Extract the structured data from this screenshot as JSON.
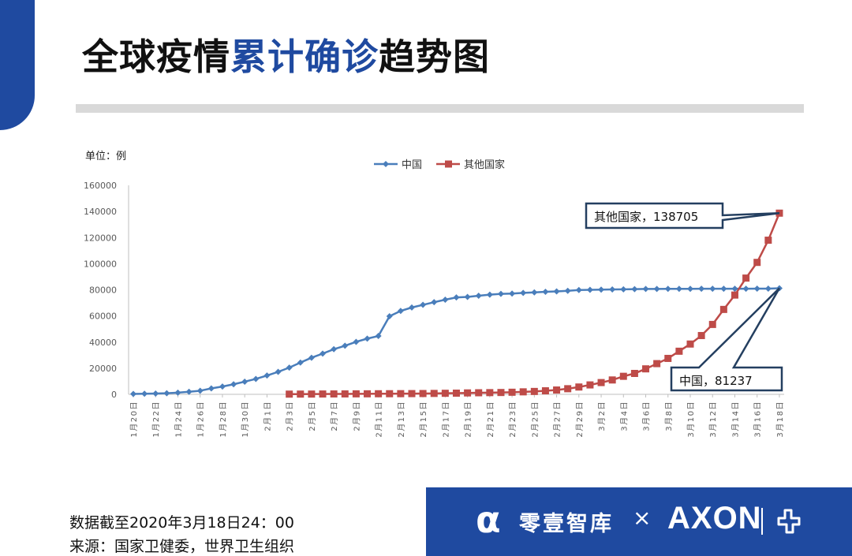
{
  "header": {
    "title_part1": "全球疫情",
    "title_highlight": "累计确诊",
    "title_part2": "趋势图"
  },
  "colors": {
    "accent": "#1f4aa0",
    "china": "#4a7ebb",
    "others": "#be4b48"
  },
  "chart_data": {
    "type": "line",
    "unit_label": "单位：例",
    "ylim": [
      0,
      160000
    ],
    "y_ticks": [
      0,
      20000,
      40000,
      60000,
      80000,
      100000,
      120000,
      140000,
      160000
    ],
    "x_tick_labels": [
      "1月20日",
      "1月22日",
      "1月24日",
      "1月26日",
      "1月28日",
      "1月30日",
      "2月1日",
      "2月3日",
      "2月5日",
      "2月7日",
      "2月9日",
      "2月11日",
      "2月13日",
      "2月15日",
      "2月17日",
      "2月19日",
      "2月21日",
      "2月23日",
      "2月25日",
      "2月27日",
      "2月29日",
      "3月2日",
      "3月4日",
      "3月6日",
      "3月8日",
      "3月10日",
      "3月12日",
      "3月14日",
      "3月16日",
      "3月18日"
    ],
    "x_start": "1月20日",
    "legend_position": "top",
    "series": [
      {
        "name": "中国",
        "color": "#4a7ebb",
        "marker": "diamond",
        "values": [
          291,
          440,
          571,
          830,
          1287,
          1975,
          2744,
          4515,
          5974,
          7711,
          9692,
          11791,
          14380,
          17205,
          20438,
          24324,
          28018,
          31161,
          34546,
          37198,
          40171,
          42638,
          44653,
          59804,
          63851,
          66492,
          68500,
          70548,
          72436,
          74185,
          74576,
          75465,
          76288,
          76936,
          77150,
          77658,
          78064,
          78497,
          78824,
          79251,
          79824,
          80026,
          80151,
          80270,
          80409,
          80552,
          80651,
          80695,
          80735,
          80754,
          80778,
          80793,
          80813,
          80824,
          80844,
          80860,
          80881,
          80894,
          81237
        ]
      },
      {
        "name": "其他国家",
        "color": "#be4b48",
        "marker": "square",
        "start_index": 14,
        "values": [
          151,
          180,
          200,
          250,
          290,
          320,
          370,
          390,
          440,
          470,
          510,
          550,
          610,
          690,
          800,
          900,
          1080,
          1200,
          1300,
          1400,
          1600,
          1900,
          2200,
          2700,
          3300,
          4300,
          5600,
          7200,
          9000,
          11000,
          13800,
          16000,
          19500,
          23500,
          27500,
          33000,
          38500,
          45000,
          53500,
          65000,
          76000,
          89000,
          101000,
          118000,
          138705
        ]
      }
    ],
    "annotations": [
      {
        "text": "其他国家，138705",
        "series": "其他国家"
      },
      {
        "text": "中国，81237",
        "series": "中国"
      }
    ]
  },
  "footer": {
    "date_note": "数据截至2020年3月18日24：00",
    "source": "来源：国家卫健委，世界卫生组织"
  },
  "banner": {
    "logo_glyph": "α",
    "brand_cn": "零壹智库",
    "times": "×",
    "brand_en": "AXON"
  }
}
